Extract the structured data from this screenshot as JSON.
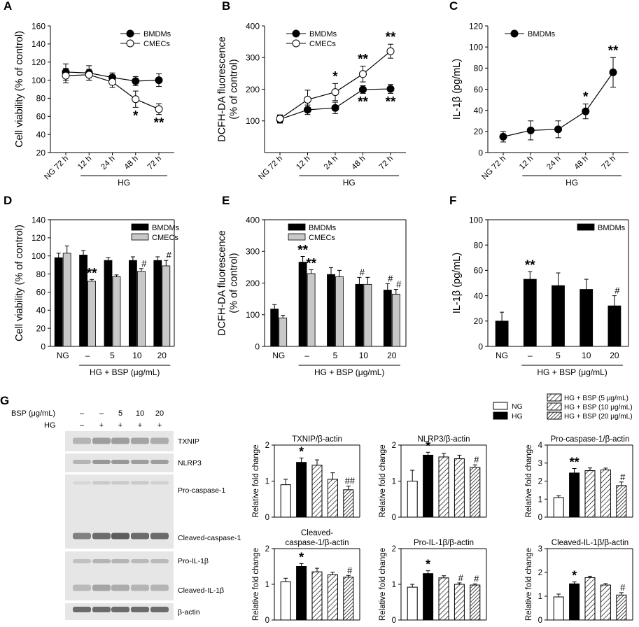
{
  "colors": {
    "black": "#000000",
    "gray": "#c8c8c8",
    "white": "#ffffff",
    "blot_band": "#555555"
  },
  "chart_data": [
    {
      "id": "A",
      "panel_label": "A",
      "type": "line",
      "ylabel": "Cell viability (% of control)",
      "ylim": [
        20,
        160
      ],
      "yticks": [
        20,
        40,
        60,
        80,
        100,
        120,
        140,
        160
      ],
      "categories": [
        "NG 72 h",
        "12 h",
        "24 h",
        "48 h",
        "72 h"
      ],
      "group": {
        "label": "HG",
        "from": 1,
        "to": 4
      },
      "legend": [
        "BMDMs",
        "CMECs"
      ],
      "series": [
        {
          "name": "BMDMs",
          "marker": "filled",
          "values": [
            109,
            108,
            103,
            99,
            100
          ],
          "errors": [
            9,
            8,
            5,
            5,
            7
          ],
          "stars": [
            "",
            "",
            "",
            "",
            ""
          ]
        },
        {
          "name": "CMECs",
          "marker": "open",
          "values": [
            105,
            106,
            98,
            79,
            68
          ],
          "errors": [
            8,
            6,
            6,
            9,
            6
          ],
          "stars": [
            "",
            "",
            "",
            "*",
            "**"
          ]
        }
      ]
    },
    {
      "id": "B",
      "panel_label": "B",
      "type": "line",
      "ylabel": "DCFH-DA fluorescence (% of control)",
      "ylabel_lines": [
        "DCFH-DA fluorescence",
        "(% of control)"
      ],
      "ylim": [
        0,
        400
      ],
      "yticks": [
        100,
        200,
        300,
        400
      ],
      "categories": [
        "NG 72 h",
        "12 h",
        "24 h",
        "48 h",
        "72 h"
      ],
      "group": {
        "label": "HG",
        "from": 1,
        "to": 4
      },
      "legend": [
        "BMDMs",
        "CMECs"
      ],
      "series": [
        {
          "name": "BMDMs",
          "marker": "filled",
          "values": [
            105,
            135,
            141,
            199,
            201
          ],
          "errors": [
            12,
            15,
            18,
            12,
            14
          ],
          "stars": [
            "",
            "",
            "",
            "**",
            "**"
          ]
        },
        {
          "name": "CMECs",
          "marker": "open",
          "values": [
            107,
            167,
            191,
            248,
            320
          ],
          "errors": [
            12,
            30,
            27,
            25,
            22
          ],
          "stars": [
            "",
            "",
            "*",
            "**",
            "**"
          ]
        }
      ]
    },
    {
      "id": "C",
      "panel_label": "C",
      "type": "line",
      "ylabel": "IL-1β (pg/mL)",
      "ylim": [
        0,
        120
      ],
      "yticks": [
        0,
        20,
        40,
        60,
        80,
        100,
        120
      ],
      "categories": [
        "NG 72 h",
        "12 h",
        "24 h",
        "48 h",
        "72 h"
      ],
      "group": {
        "label": "HG",
        "from": 1,
        "to": 4
      },
      "legend": [
        "BMDMs"
      ],
      "series": [
        {
          "name": "BMDMs",
          "marker": "filled",
          "values": [
            15,
            21,
            22,
            39,
            76
          ],
          "errors": [
            5,
            9,
            8,
            7,
            14
          ],
          "stars": [
            "",
            "",
            "",
            "*",
            "**"
          ]
        }
      ]
    },
    {
      "id": "D",
      "panel_label": "D",
      "type": "bar",
      "ylabel": "Cell viability (% of control)",
      "ylim": [
        0,
        140
      ],
      "yticks": [
        0,
        20,
        40,
        60,
        80,
        100,
        120,
        140
      ],
      "categories": [
        "NG",
        "–",
        "5",
        "10",
        "20"
      ],
      "group": {
        "label": "HG + BSP (μg/mL)",
        "from": 1,
        "to": 4
      },
      "legend": [
        "BMDMs",
        "CMECs"
      ],
      "series": [
        {
          "name": "BMDMs",
          "color": "#000000",
          "values": [
            98,
            101,
            95,
            95,
            95
          ],
          "errors": [
            5,
            5,
            3,
            4,
            4
          ],
          "stars": [
            "",
            "",
            "",
            "",
            ""
          ]
        },
        {
          "name": "CMECs",
          "color": "#c8c8c8",
          "values": [
            103,
            72,
            77,
            83,
            89
          ],
          "errors": [
            8,
            2,
            2,
            3,
            6
          ],
          "stars": [
            "",
            "**",
            "",
            "#",
            "#"
          ]
        }
      ]
    },
    {
      "id": "E",
      "panel_label": "E",
      "type": "bar",
      "ylabel": "DCFH-DA fluorescence (% of control)",
      "ylabel_lines": [
        "DCFH-DA fluorescence",
        "(% of control)"
      ],
      "ylim": [
        0,
        400
      ],
      "yticks": [
        0,
        100,
        200,
        300,
        400
      ],
      "categories": [
        "NG",
        "–",
        "5",
        "10",
        "20"
      ],
      "group": {
        "label": "HG + BSP (μg/mL)",
        "from": 1,
        "to": 4
      },
      "legend": [
        "BMDMs",
        "CMECs"
      ],
      "series": [
        {
          "name": "BMDMs",
          "color": "#000000",
          "values": [
            118,
            266,
            227,
            196,
            178
          ],
          "errors": [
            14,
            18,
            22,
            22,
            20
          ],
          "stars": [
            "",
            "**",
            "",
            "#",
            "#"
          ]
        },
        {
          "name": "CMECs",
          "color": "#c8c8c8",
          "values": [
            90,
            230,
            220,
            196,
            165
          ],
          "errors": [
            8,
            12,
            20,
            22,
            15
          ],
          "stars": [
            "",
            "**",
            "",
            "",
            "#"
          ]
        }
      ]
    },
    {
      "id": "F",
      "panel_label": "F",
      "type": "bar",
      "ylabel": "IL-1β (pg/mL)",
      "ylim": [
        0,
        100
      ],
      "yticks": [
        0,
        20,
        40,
        60,
        80,
        100
      ],
      "categories": [
        "NG",
        "–",
        "5",
        "10",
        "20"
      ],
      "group": {
        "label": "HG + BSP (μg/mL)",
        "from": 1,
        "to": 4
      },
      "legend": [
        "BMDMs"
      ],
      "series": [
        {
          "name": "BMDMs",
          "color": "#000000",
          "values": [
            20,
            53,
            48,
            45,
            32
          ],
          "errors": [
            7,
            6,
            10,
            8,
            8
          ],
          "stars": [
            "",
            "**",
            "",
            "",
            "#"
          ]
        }
      ]
    },
    {
      "id": "G1",
      "type": "bar",
      "title": "TXNIP/β-actin",
      "ylabel": "Relative fold change",
      "ylim": [
        0,
        2
      ],
      "yticks": [
        0,
        1,
        2
      ],
      "categories": [
        "NG",
        "HG",
        "HG + BSP (5 μg/mL)",
        "HG + BSP (10 μg/mL)",
        "HG + BSP (20 μg/mL)"
      ],
      "values": [
        0.9,
        1.52,
        1.44,
        1.05,
        0.76
      ],
      "errors": [
        0.15,
        0.12,
        0.15,
        0.18,
        0.1
      ],
      "stars": [
        "",
        "*",
        "",
        "",
        "##"
      ]
    },
    {
      "id": "G2",
      "type": "bar",
      "title": "NLRP3/β-actin",
      "ylabel": "Relative fold change",
      "ylim": [
        0,
        2
      ],
      "yticks": [
        0,
        1,
        2
      ],
      "categories": [
        "NG",
        "HG",
        "HG + BSP (5 μg/mL)",
        "HG + BSP (10 μg/mL)",
        "HG + BSP (20 μg/mL)"
      ],
      "values": [
        1.0,
        1.72,
        1.67,
        1.62,
        1.38
      ],
      "errors": [
        0.3,
        0.08,
        0.1,
        0.1,
        0.07
      ],
      "stars": [
        "",
        "*",
        "",
        "",
        "#"
      ]
    },
    {
      "id": "G3",
      "type": "bar",
      "title": "Pro-caspase-1/β-actin",
      "ylabel": "Relative fold change",
      "ylim": [
        0,
        4
      ],
      "yticks": [
        0,
        1,
        2,
        3,
        4
      ],
      "categories": [
        "NG",
        "HG",
        "HG + BSP (5 μg/mL)",
        "HG + BSP (10 μg/mL)",
        "HG + BSP (20 μg/mL)"
      ],
      "values": [
        1.08,
        2.45,
        2.58,
        2.62,
        1.75
      ],
      "errors": [
        0.1,
        0.25,
        0.15,
        0.1,
        0.2
      ],
      "stars": [
        "",
        "**",
        "",
        "",
        "#"
      ]
    },
    {
      "id": "G4",
      "type": "bar",
      "title": "Cleaved-caspase-1/β-actin",
      "title_lines": [
        "Cleaved-",
        "caspase-1/β-actin"
      ],
      "ylabel": "Relative fold change",
      "ylim": [
        0,
        2
      ],
      "yticks": [
        0,
        1,
        2
      ],
      "categories": [
        "NG",
        "HG",
        "HG + BSP (5 μg/mL)",
        "HG + BSP (10 μg/mL)",
        "HG + BSP (20 μg/mL)"
      ],
      "values": [
        1.07,
        1.5,
        1.35,
        1.27,
        1.2
      ],
      "errors": [
        0.1,
        0.08,
        0.1,
        0.07,
        0.05
      ],
      "stars": [
        "",
        "*",
        "",
        "",
        "#"
      ]
    },
    {
      "id": "G5",
      "type": "bar",
      "title": "Pro-IL-1β/β-actin",
      "ylabel": "Relative fold change",
      "ylim": [
        0,
        2
      ],
      "yticks": [
        0,
        1,
        2
      ],
      "categories": [
        "NG",
        "HG",
        "HG + BSP (5 μg/mL)",
        "HG + BSP (10 μg/mL)",
        "HG + BSP (20 μg/mL)"
      ],
      "values": [
        0.92,
        1.3,
        1.18,
        1.0,
        0.98
      ],
      "errors": [
        0.08,
        0.08,
        0.06,
        0.04,
        0.03
      ],
      "stars": [
        "",
        "*",
        "",
        "#",
        "#"
      ]
    },
    {
      "id": "G6",
      "type": "bar",
      "title": "Cleaved-IL-1β/β-actin",
      "ylabel": "Relative fold change",
      "ylim": [
        0,
        3
      ],
      "yticks": [
        0,
        1,
        2,
        3
      ],
      "categories": [
        "NG",
        "HG",
        "HG + BSP (5 μg/mL)",
        "HG + BSP (10 μg/mL)",
        "HG + BSP (20 μg/mL)"
      ],
      "values": [
        0.97,
        1.52,
        1.78,
        1.47,
        1.05
      ],
      "errors": [
        0.12,
        0.08,
        0.06,
        0.06,
        0.1
      ],
      "stars": [
        "",
        "*",
        "",
        "",
        "#"
      ]
    }
  ],
  "panel_g": {
    "label": "G",
    "bsp_label": "BSP (μg/mL)",
    "hg_label": "HG",
    "bsp_values": [
      "–",
      "–",
      "5",
      "10",
      "20"
    ],
    "hg_values": [
      "–",
      "+",
      "+",
      "+",
      "+"
    ],
    "blot_labels": [
      "TXNIP",
      "NLRP3",
      "Pro-caspase-1",
      "Cleaved-caspase-1",
      "Pro-IL-1β",
      "Cleaved-IL-1β",
      "β-actin"
    ],
    "legend": [
      "NG",
      "HG",
      "HG + BSP (5 μg/mL)",
      "HG + BSP (10 μg/mL)",
      "HG + BSP (20 μg/mL)"
    ]
  }
}
